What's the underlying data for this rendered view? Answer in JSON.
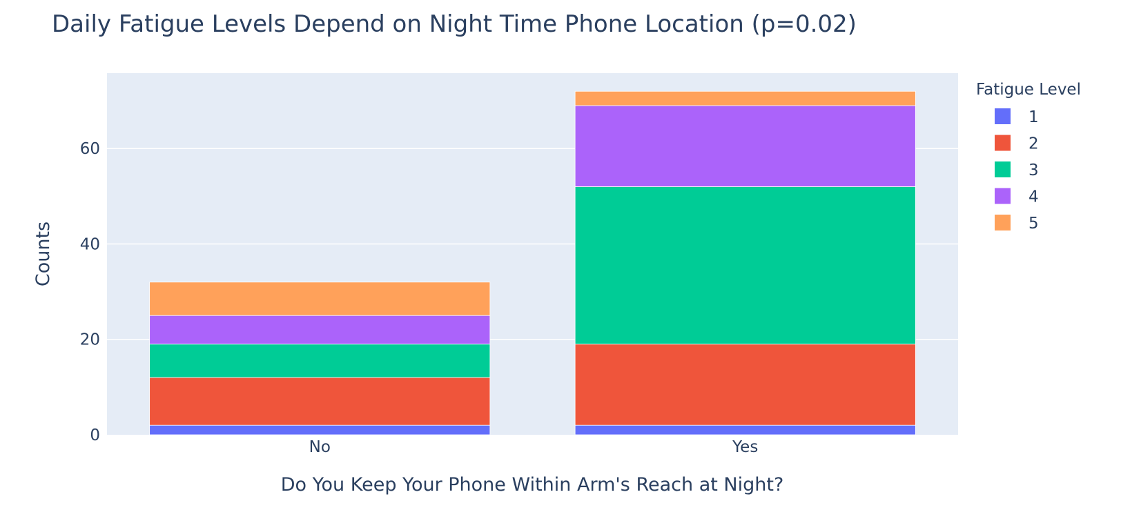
{
  "chart_data": {
    "type": "bar",
    "barmode": "stack",
    "title": "Daily Fatigue Levels Depend on Night Time Phone Location (p=0.02)",
    "xlabel": "Do You Keep Your Phone Within Arm's Reach at Night?",
    "ylabel": "Counts",
    "categories": [
      "No",
      "Yes"
    ],
    "ylim": [
      0,
      75.8
    ],
    "yticks": [
      0,
      20,
      40,
      60
    ],
    "grid": true,
    "legend_title": "Fatigue Level",
    "legend_position": "top-right",
    "background_color": "#e5ecf6",
    "series": [
      {
        "name": "1",
        "color": "#636efa",
        "values": [
          2,
          2
        ]
      },
      {
        "name": "2",
        "color": "#ef553b",
        "values": [
          10,
          17
        ]
      },
      {
        "name": "3",
        "color": "#00cc96",
        "values": [
          7,
          33
        ]
      },
      {
        "name": "4",
        "color": "#ab63fa",
        "values": [
          6,
          17
        ]
      },
      {
        "name": "5",
        "color": "#ffa15a",
        "values": [
          7,
          3
        ]
      }
    ]
  }
}
